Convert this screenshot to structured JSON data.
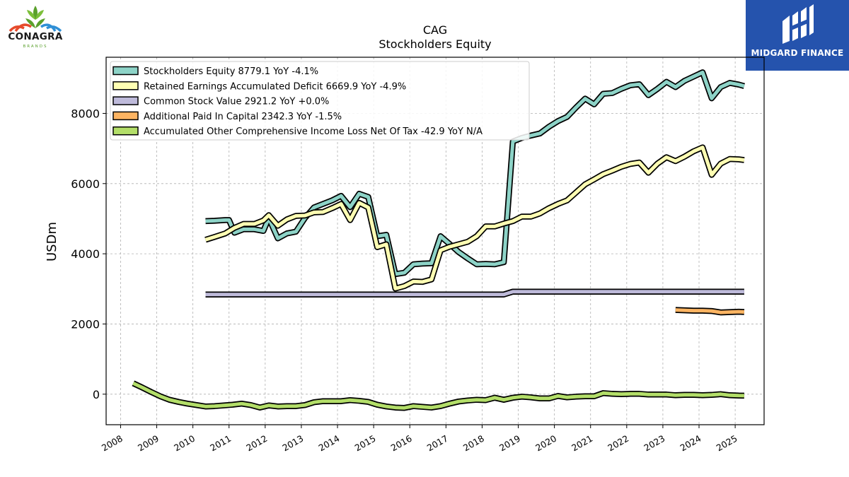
{
  "brands": {
    "left_name": "CONAGRA",
    "left_sub": "BRANDS",
    "right_name": "MIDGARD FINANCE"
  },
  "chart_data": {
    "type": "line",
    "title": "CAG",
    "subtitle": "Stockholders  Equity",
    "ylabel": "USDm",
    "xlabel": "",
    "xlim": [
      2007.6,
      2025.8
    ],
    "ylim": [
      -870,
      9600
    ],
    "xticks": [
      2008,
      2009,
      2010,
      2011,
      2012,
      2013,
      2014,
      2015,
      2016,
      2017,
      2018,
      2019,
      2020,
      2021,
      2022,
      2023,
      2024,
      2025
    ],
    "yticks": [
      0,
      2000,
      4000,
      6000,
      8000
    ],
    "grid": true,
    "legend_position": "top-left",
    "series": [
      {
        "name": "Stockholders Equity  8779.1 YoY -4.1%",
        "color": "#8dd3c7",
        "points": [
          [
            2010.35,
            4930
          ],
          [
            2010.6,
            4940
          ],
          [
            2010.9,
            4960
          ],
          [
            2011.0,
            4960
          ],
          [
            2011.15,
            4600
          ],
          [
            2011.4,
            4700
          ],
          [
            2011.7,
            4700
          ],
          [
            2011.95,
            4650
          ],
          [
            2012.1,
            5020
          ],
          [
            2012.35,
            4440
          ],
          [
            2012.6,
            4580
          ],
          [
            2012.85,
            4630
          ],
          [
            2013.1,
            5020
          ],
          [
            2013.35,
            5320
          ],
          [
            2013.6,
            5420
          ],
          [
            2013.85,
            5520
          ],
          [
            2014.1,
            5650
          ],
          [
            2014.35,
            5330
          ],
          [
            2014.6,
            5710
          ],
          [
            2014.85,
            5620
          ],
          [
            2015.1,
            4500
          ],
          [
            2015.35,
            4540
          ],
          [
            2015.6,
            3420
          ],
          [
            2015.85,
            3460
          ],
          [
            2016.1,
            3700
          ],
          [
            2016.35,
            3720
          ],
          [
            2016.6,
            3730
          ],
          [
            2016.85,
            4500
          ],
          [
            2017.1,
            4280
          ],
          [
            2017.35,
            4050
          ],
          [
            2017.6,
            3870
          ],
          [
            2017.85,
            3700
          ],
          [
            2018.1,
            3710
          ],
          [
            2018.35,
            3700
          ],
          [
            2018.6,
            3760
          ],
          [
            2018.85,
            7200
          ],
          [
            2019.1,
            7300
          ],
          [
            2019.35,
            7370
          ],
          [
            2019.6,
            7430
          ],
          [
            2019.85,
            7620
          ],
          [
            2020.1,
            7780
          ],
          [
            2020.35,
            7900
          ],
          [
            2020.6,
            8170
          ],
          [
            2020.85,
            8420
          ],
          [
            2021.1,
            8260
          ],
          [
            2021.35,
            8560
          ],
          [
            2021.6,
            8580
          ],
          [
            2021.85,
            8700
          ],
          [
            2022.1,
            8800
          ],
          [
            2022.35,
            8830
          ],
          [
            2022.6,
            8520
          ],
          [
            2022.85,
            8700
          ],
          [
            2023.1,
            8900
          ],
          [
            2023.35,
            8750
          ],
          [
            2023.6,
            8930
          ],
          [
            2023.85,
            9050
          ],
          [
            2024.1,
            9170
          ],
          [
            2024.35,
            8430
          ],
          [
            2024.6,
            8750
          ],
          [
            2024.85,
            8870
          ],
          [
            2025.1,
            8820
          ],
          [
            2025.25,
            8779
          ]
        ]
      },
      {
        "name": "Retained Earnings Accumulated Deficit  6669.9 YoY -4.9%",
        "color": "#ffffb3",
        "points": [
          [
            2010.35,
            4400
          ],
          [
            2010.6,
            4480
          ],
          [
            2010.9,
            4580
          ],
          [
            2011.15,
            4740
          ],
          [
            2011.4,
            4850
          ],
          [
            2011.7,
            4850
          ],
          [
            2011.95,
            4950
          ],
          [
            2012.1,
            5100
          ],
          [
            2012.35,
            4800
          ],
          [
            2012.6,
            4980
          ],
          [
            2012.85,
            5080
          ],
          [
            2013.1,
            5090
          ],
          [
            2013.35,
            5180
          ],
          [
            2013.6,
            5190
          ],
          [
            2013.85,
            5300
          ],
          [
            2014.1,
            5420
          ],
          [
            2014.35,
            4960
          ],
          [
            2014.6,
            5450
          ],
          [
            2014.85,
            5320
          ],
          [
            2015.1,
            4190
          ],
          [
            2015.35,
            4270
          ],
          [
            2015.6,
            3010
          ],
          [
            2015.85,
            3080
          ],
          [
            2016.1,
            3210
          ],
          [
            2016.35,
            3200
          ],
          [
            2016.6,
            3270
          ],
          [
            2016.85,
            4100
          ],
          [
            2017.1,
            4200
          ],
          [
            2017.35,
            4270
          ],
          [
            2017.6,
            4340
          ],
          [
            2017.85,
            4500
          ],
          [
            2018.1,
            4780
          ],
          [
            2018.35,
            4780
          ],
          [
            2018.6,
            4860
          ],
          [
            2018.85,
            4930
          ],
          [
            2019.1,
            5060
          ],
          [
            2019.35,
            5060
          ],
          [
            2019.6,
            5150
          ],
          [
            2019.85,
            5300
          ],
          [
            2020.1,
            5420
          ],
          [
            2020.35,
            5520
          ],
          [
            2020.6,
            5750
          ],
          [
            2020.85,
            5980
          ],
          [
            2021.1,
            6120
          ],
          [
            2021.35,
            6270
          ],
          [
            2021.6,
            6370
          ],
          [
            2021.85,
            6480
          ],
          [
            2022.1,
            6560
          ],
          [
            2022.35,
            6600
          ],
          [
            2022.6,
            6310
          ],
          [
            2022.85,
            6570
          ],
          [
            2023.1,
            6750
          ],
          [
            2023.35,
            6640
          ],
          [
            2023.6,
            6770
          ],
          [
            2023.85,
            6920
          ],
          [
            2024.1,
            7030
          ],
          [
            2024.35,
            6250
          ],
          [
            2024.6,
            6570
          ],
          [
            2024.85,
            6700
          ],
          [
            2025.1,
            6690
          ],
          [
            2025.25,
            6670
          ]
        ]
      },
      {
        "name": "Common Stock Value  2921.2 YoY +0.0%",
        "color": "#bebada",
        "points": [
          [
            2010.35,
            2840
          ],
          [
            2018.6,
            2840
          ],
          [
            2018.85,
            2921
          ],
          [
            2025.25,
            2921
          ]
        ]
      },
      {
        "name": "Additional Paid In Capital  2342.3 YoY -1.5%",
        "color": "#fdb462",
        "points": [
          [
            2023.35,
            2400
          ],
          [
            2023.6,
            2390
          ],
          [
            2023.85,
            2380
          ],
          [
            2024.1,
            2380
          ],
          [
            2024.35,
            2370
          ],
          [
            2024.6,
            2330
          ],
          [
            2024.85,
            2340
          ],
          [
            2025.1,
            2350
          ],
          [
            2025.25,
            2342
          ]
        ]
      },
      {
        "name": "Accumulated Other Comprehensive Income Loss Net Of Tax  -42.9 YoY N/A",
        "color": "#b3de69",
        "points": [
          [
            2008.35,
            310
          ],
          [
            2008.6,
            190
          ],
          [
            2008.85,
            60
          ],
          [
            2009.1,
            -60
          ],
          [
            2009.35,
            -160
          ],
          [
            2009.6,
            -220
          ],
          [
            2009.85,
            -270
          ],
          [
            2010.1,
            -310
          ],
          [
            2010.35,
            -350
          ],
          [
            2010.6,
            -340
          ],
          [
            2010.85,
            -320
          ],
          [
            2011.1,
            -300
          ],
          [
            2011.35,
            -270
          ],
          [
            2011.6,
            -310
          ],
          [
            2011.85,
            -380
          ],
          [
            2012.1,
            -320
          ],
          [
            2012.35,
            -350
          ],
          [
            2012.6,
            -340
          ],
          [
            2012.85,
            -340
          ],
          [
            2013.1,
            -310
          ],
          [
            2013.35,
            -230
          ],
          [
            2013.6,
            -200
          ],
          [
            2013.85,
            -200
          ],
          [
            2014.1,
            -200
          ],
          [
            2014.35,
            -170
          ],
          [
            2014.6,
            -190
          ],
          [
            2014.85,
            -220
          ],
          [
            2015.1,
            -300
          ],
          [
            2015.35,
            -350
          ],
          [
            2015.6,
            -380
          ],
          [
            2015.85,
            -390
          ],
          [
            2016.1,
            -340
          ],
          [
            2016.35,
            -360
          ],
          [
            2016.6,
            -380
          ],
          [
            2016.85,
            -340
          ],
          [
            2017.1,
            -270
          ],
          [
            2017.35,
            -210
          ],
          [
            2017.6,
            -180
          ],
          [
            2017.85,
            -160
          ],
          [
            2018.1,
            -170
          ],
          [
            2018.35,
            -100
          ],
          [
            2018.6,
            -160
          ],
          [
            2018.85,
            -100
          ],
          [
            2019.1,
            -70
          ],
          [
            2019.35,
            -90
          ],
          [
            2019.6,
            -120
          ],
          [
            2019.85,
            -120
          ],
          [
            2020.1,
            -50
          ],
          [
            2020.35,
            -90
          ],
          [
            2020.6,
            -70
          ],
          [
            2020.85,
            -60
          ],
          [
            2021.1,
            -60
          ],
          [
            2021.35,
            30
          ],
          [
            2021.6,
            10
          ],
          [
            2021.85,
            0
          ],
          [
            2022.1,
            10
          ],
          [
            2022.35,
            10
          ],
          [
            2022.6,
            -10
          ],
          [
            2022.85,
            -10
          ],
          [
            2023.1,
            -10
          ],
          [
            2023.35,
            -30
          ],
          [
            2023.6,
            -20
          ],
          [
            2023.85,
            -20
          ],
          [
            2024.1,
            -30
          ],
          [
            2024.35,
            -20
          ],
          [
            2024.6,
            0
          ],
          [
            2024.85,
            -30
          ],
          [
            2025.1,
            -40
          ],
          [
            2025.25,
            -43
          ]
        ]
      }
    ]
  }
}
